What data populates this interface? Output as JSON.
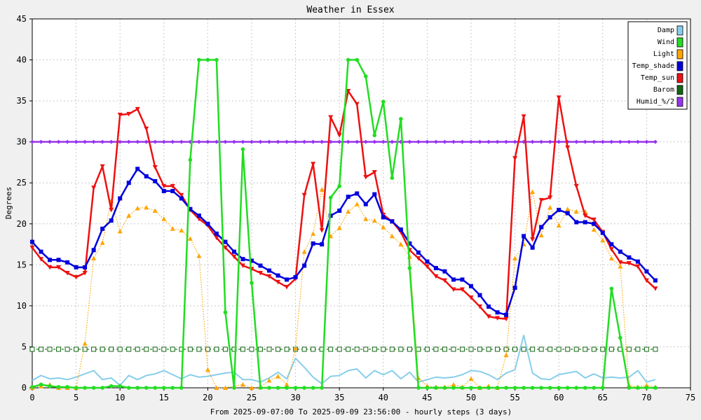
{
  "chart_data": {
    "type": "line",
    "title": "Weather in Essex",
    "ylabel": "Degrees",
    "xlabel": "From 2025-09-07:00 To 2025-09-09 23:56:00 - hourly steps (3 days)",
    "xlim": [
      0,
      75
    ],
    "ylim": [
      0,
      45
    ],
    "xticks": [
      0,
      5,
      10,
      15,
      20,
      25,
      30,
      35,
      40,
      45,
      50,
      55,
      60,
      65,
      70,
      75
    ],
    "yticks": [
      0,
      5,
      10,
      15,
      20,
      25,
      30,
      35,
      40,
      45
    ],
    "grid": true,
    "legend_position": "top-right",
    "series": [
      {
        "name": "Damp",
        "color": "#87ceeb",
        "style": "solid",
        "marker": "none",
        "values": [
          0.9,
          1.5,
          1.1,
          1.2,
          1.0,
          1.3,
          1.7,
          2.1,
          1.0,
          1.2,
          0.3,
          1.5,
          1.0,
          1.5,
          1.7,
          2.1,
          1.6,
          1.1,
          1.6,
          1.3,
          1.4,
          1.6,
          1.8,
          1.9,
          1.0,
          1.0,
          0.7,
          1.2,
          1.9,
          1.1,
          3.6,
          2.5,
          1.3,
          0.5,
          1.4,
          1.5,
          2.1,
          2.3,
          1.2,
          2.1,
          1.6,
          2.1,
          1.1,
          1.9,
          0.7,
          1.0,
          1.3,
          1.2,
          1.3,
          1.6,
          2.1,
          2.0,
          1.6,
          1.0,
          1.8,
          2.2,
          6.4,
          1.8,
          1.1,
          1.0,
          1.6,
          1.8,
          2.0,
          1.2,
          1.7,
          1.2,
          1.3,
          1.2,
          1.3,
          2.1,
          0.7,
          1.0
        ]
      },
      {
        "name": "Wind",
        "color": "#22dd22",
        "style": "solid",
        "marker": "circle",
        "values": [
          0.1,
          0.4,
          0.2,
          0.1,
          0.1,
          0,
          0,
          0,
          0,
          0.2,
          0.2,
          0,
          0,
          0,
          0,
          0,
          0,
          0,
          27.8,
          40,
          40,
          40,
          9.2,
          0,
          29.1,
          12.8,
          0,
          0,
          0,
          0,
          0,
          0,
          0,
          0,
          23.2,
          24.6,
          40,
          40,
          38,
          30.8,
          34.9,
          25.6,
          32.8,
          14.6,
          0,
          0,
          0,
          0,
          0,
          0,
          0,
          0,
          0,
          0,
          0,
          0,
          0,
          0,
          0,
          0,
          0,
          0,
          0,
          0,
          0,
          0,
          12.1,
          6.1,
          0,
          0,
          0,
          0
        ]
      },
      {
        "name": "Light",
        "color": "#ffa500",
        "style": "dotted",
        "marker": "triangle-up",
        "values": [
          0,
          0.2,
          0.4,
          0,
          0,
          0,
          5.4,
          15.8,
          17.7,
          22.8,
          19.1,
          21.0,
          21.9,
          22.0,
          21.6,
          20.6,
          19.4,
          19.2,
          18.2,
          16.1,
          2.2,
          0,
          0,
          0.2,
          0.4,
          0,
          0.1,
          0.9,
          1.4,
          0.4,
          4.8,
          16.6,
          18.8,
          24.2,
          18.5,
          19.5,
          21.5,
          22.4,
          20.6,
          20.4,
          19.6,
          18.5,
          17.5,
          16.0,
          1.2,
          0.2,
          0.1,
          0.1,
          0.4,
          0.1,
          1.1,
          0,
          0.2,
          0,
          4.0,
          15.8,
          17.5,
          23.9,
          18.6,
          22.0,
          19.8,
          21.8,
          21.5,
          21.5,
          19.3,
          18.0,
          15.8,
          14.8,
          0.3,
          0.1,
          0.3,
          0.1
        ]
      },
      {
        "name": "Temp_shade",
        "color": "#0000dd",
        "style": "solid",
        "marker": "square",
        "values": [
          17.8,
          16.6,
          15.6,
          15.6,
          15.3,
          14.7,
          14.7,
          16.8,
          19.4,
          20.4,
          23.1,
          25.0,
          26.7,
          25.8,
          25.2,
          24.0,
          24.0,
          23.1,
          21.8,
          21.0,
          20.0,
          18.8,
          17.8,
          16.6,
          15.7,
          15.5,
          14.9,
          14.3,
          13.7,
          13.2,
          13.5,
          14.9,
          17.6,
          17.5,
          21.0,
          21.6,
          23.3,
          23.7,
          22.4,
          23.6,
          20.8,
          20.3,
          19.3,
          17.6,
          16.5,
          15.4,
          14.6,
          14.2,
          13.2,
          13.2,
          12.4,
          11.3,
          9.9,
          9.2,
          8.9,
          12.2,
          18.5,
          17.1,
          19.6,
          20.8,
          21.7,
          21.3,
          20.2,
          20.2,
          20.0,
          18.9,
          17.5,
          16.6,
          15.9,
          15.4,
          14.2,
          13.1
        ]
      },
      {
        "name": "Temp_sun",
        "color": "#ee1111",
        "style": "solid",
        "marker": "triangle-down",
        "values": [
          17.1,
          15.7,
          14.7,
          14.7,
          14.0,
          13.5,
          14.0,
          24.4,
          27.0,
          21.7,
          33.3,
          33.4,
          34.0,
          31.6,
          26.9,
          24.6,
          24.6,
          23.5,
          21.7,
          20.6,
          19.8,
          18.3,
          17.1,
          16.0,
          14.9,
          14.5,
          14.0,
          13.6,
          12.9,
          12.3,
          13.3,
          23.5,
          27.3,
          19.2,
          33.0,
          30.8,
          36.2,
          34.6,
          25.7,
          26.3,
          21.1,
          20.3,
          19.0,
          16.8,
          15.8,
          14.8,
          13.6,
          13.1,
          12.0,
          12.0,
          11.0,
          9.9,
          8.7,
          8.5,
          8.4,
          28.0,
          33.1,
          18.1,
          22.9,
          23.2,
          35.4,
          29.3,
          24.6,
          21.0,
          20.5,
          19.0,
          16.9,
          15.3,
          15.2,
          14.8,
          13.1,
          12.1
        ]
      },
      {
        "name": "Barom",
        "color": "#116611",
        "style": "dashed",
        "marker": "open-square",
        "values": [
          4.7,
          4.7,
          4.7,
          4.7,
          4.7,
          4.7,
          4.7,
          4.7,
          4.7,
          4.7,
          4.7,
          4.7,
          4.7,
          4.7,
          4.7,
          4.7,
          4.7,
          4.7,
          4.7,
          4.7,
          4.7,
          4.7,
          4.7,
          4.7,
          4.7,
          4.7,
          4.7,
          4.7,
          4.7,
          4.7,
          4.7,
          4.7,
          4.7,
          4.7,
          4.7,
          4.7,
          4.7,
          4.7,
          4.7,
          4.7,
          4.7,
          4.7,
          4.7,
          4.7,
          4.7,
          4.7,
          4.7,
          4.7,
          4.7,
          4.7,
          4.7,
          4.7,
          4.7,
          4.7,
          4.7,
          4.7,
          4.7,
          4.7,
          4.7,
          4.7,
          4.7,
          4.7,
          4.7,
          4.7,
          4.7,
          4.7,
          4.7,
          4.7,
          4.7,
          4.7,
          4.7,
          4.7
        ]
      },
      {
        "name": "Humid_%/2",
        "color": "#9933ee",
        "style": "solid",
        "marker": "diamond",
        "values": [
          30,
          30,
          30,
          30,
          30,
          30,
          30,
          30,
          30,
          30,
          30,
          30,
          30,
          30,
          30,
          30,
          30,
          30,
          30,
          30,
          30,
          30,
          30,
          30,
          30,
          30,
          30,
          30,
          30,
          30,
          30,
          30,
          30,
          30,
          30,
          30,
          30,
          30,
          30,
          30,
          30,
          30,
          30,
          30,
          30,
          30,
          30,
          30,
          30,
          30,
          30,
          30,
          30,
          30,
          30,
          30,
          30,
          30,
          30,
          30,
          30,
          30,
          30,
          30,
          30,
          30,
          30,
          30,
          30,
          30,
          30,
          30
        ]
      }
    ]
  }
}
